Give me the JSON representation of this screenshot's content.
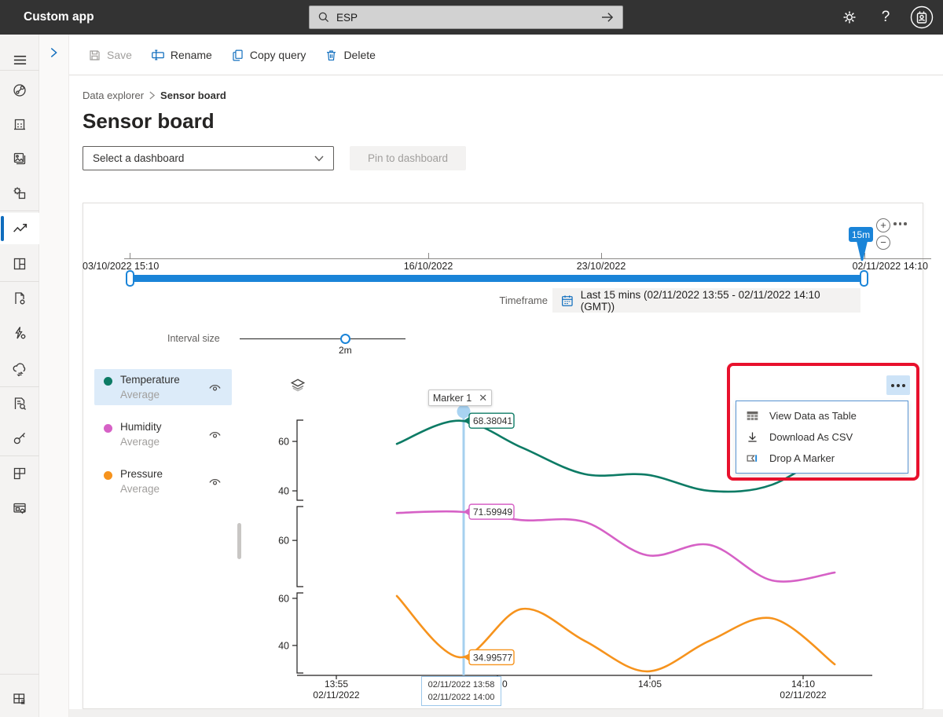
{
  "topbar": {
    "app_title": "Custom app",
    "search_value": "ESP",
    "help_label": "?"
  },
  "toolbar": {
    "save_label": "Save",
    "rename_label": "Rename",
    "copy_query_label": "Copy query",
    "delete_label": "Delete"
  },
  "sidebar": {
    "items": [
      "network",
      "building-dots",
      "image-stack",
      "chip-gear",
      "line-chart",
      "tiles",
      "document-gear",
      "lightning-gear",
      "cloud-sync",
      "document-search",
      "key",
      "grid-partial",
      "window-gear"
    ],
    "bottom_item": "grid-list",
    "selected": "line-chart"
  },
  "breadcrumb": {
    "parent": "Data explorer",
    "current": "Sensor board"
  },
  "page": {
    "title": "Sensor board",
    "dashboard_select_value": "Select a dashboard",
    "pin_button_label": "Pin to dashboard"
  },
  "timeline": {
    "labels": [
      "03/10/2022 15:10",
      "16/10/2022",
      "23/10/2022",
      "02/11/2022 14:10"
    ],
    "zoom_badge": "15m"
  },
  "timeframe": {
    "label": "Timeframe",
    "value": "Last 15 mins (02/11/2022 13:55 - 02/11/2022 14:10 (GMT))"
  },
  "interval": {
    "label": "Interval size",
    "value": "2m"
  },
  "legend": [
    {
      "name": "Temperature",
      "agg": "Average",
      "color": "#0d7b65",
      "selected": true
    },
    {
      "name": "Humidity",
      "agg": "Average",
      "color": "#d661c6",
      "selected": false
    },
    {
      "name": "Pressure",
      "agg": "Average",
      "color": "#f6931d",
      "selected": false
    }
  ],
  "marker": {
    "label": "Marker 1",
    "tooltip_line1": "02/11/2022 13:58",
    "tooltip_line2": "02/11/2022 14:00"
  },
  "menu": {
    "items": [
      {
        "icon": "table-icon",
        "label": "View Data as Table"
      },
      {
        "icon": "download-icon",
        "label": "Download As CSV"
      },
      {
        "icon": "marker-flag-icon",
        "label": "Drop A Marker"
      }
    ]
  },
  "chart_data": {
    "type": "line",
    "x": [
      "13:57",
      "13:59",
      "14:01",
      "14:03",
      "14:05",
      "14:07",
      "14:09",
      "14:11"
    ],
    "x_axis_ticks": [
      {
        "lines": [
          "13:55",
          "02/11/2022"
        ]
      },
      {
        "lines": [
          "0"
        ]
      },
      {
        "lines": [
          "14:05"
        ]
      },
      {
        "lines": [
          "14:10",
          "02/11/2022"
        ]
      }
    ],
    "marker_x": "13:59",
    "legend_position": "left",
    "grid": false,
    "series": [
      {
        "name": "Temperature (Average)",
        "color": "#0d7b65",
        "ylim": [
          36.2,
          68.6
        ],
        "yticks": [
          60,
          40
        ],
        "values": [
          59,
          68.38041,
          57.5,
          46.8,
          46.5,
          40,
          42.5,
          58
        ],
        "marker_value": "68.38041"
      },
      {
        "name": "Humidity (Average)",
        "color": "#d661c6",
        "ylim": [
          41.3,
          73.7
        ],
        "yticks": [
          60
        ],
        "values": [
          71.1,
          71.59949,
          68.2,
          67.5,
          54,
          58.2,
          43.8,
          47
        ],
        "marker_value": "71.59949"
      },
      {
        "name": "Pressure (Average)",
        "color": "#f6931d",
        "ylim": [
          28.3,
          62.3
        ],
        "yticks": [
          60,
          40
        ],
        "values": [
          61,
          34.99577,
          55.5,
          42,
          29,
          42,
          51.5,
          32
        ],
        "marker_value": "34.99577"
      }
    ]
  }
}
